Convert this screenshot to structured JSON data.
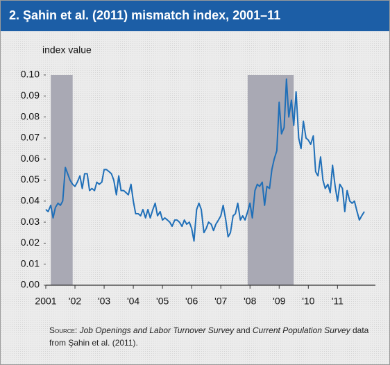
{
  "chart_data": {
    "type": "line",
    "title": "2. Şahin et al. (2011) mismatch index, 2001–11",
    "y_label": "index value",
    "color": "#1f6fb8",
    "shade_color": "#a9a9b4",
    "shaded_ranges": [
      [
        2001.17,
        2001.92
      ],
      [
        2007.92,
        2009.5
      ]
    ],
    "xlim": [
      2001,
      2012.3
    ],
    "ylim": [
      0,
      0.1
    ],
    "xticks": [
      {
        "value": 2001,
        "label": "2001"
      },
      {
        "value": 2002,
        "label": "'02"
      },
      {
        "value": 2003,
        "label": "'03"
      },
      {
        "value": 2004,
        "label": "'04"
      },
      {
        "value": 2005,
        "label": "'05"
      },
      {
        "value": 2006,
        "label": "'06"
      },
      {
        "value": 2007,
        "label": "'07"
      },
      {
        "value": 2008,
        "label": "'08"
      },
      {
        "value": 2009,
        "label": "'09"
      },
      {
        "value": 2010,
        "label": "'10"
      },
      {
        "value": 2011,
        "label": "'11"
      }
    ],
    "yticks": [
      {
        "value": 0,
        "label": "0.00"
      },
      {
        "value": 0.01,
        "label": "0.01"
      },
      {
        "value": 0.02,
        "label": "0.02"
      },
      {
        "value": 0.03,
        "label": "0.03"
      },
      {
        "value": 0.04,
        "label": "0.04"
      },
      {
        "value": 0.05,
        "label": "0.05"
      },
      {
        "value": 0.06,
        "label": "0.06"
      },
      {
        "value": 0.07,
        "label": "0.07"
      },
      {
        "value": 0.08,
        "label": "0.08"
      },
      {
        "value": 0.09,
        "label": "0.09"
      },
      {
        "value": 0.1,
        "label": "0.10"
      }
    ],
    "x": [
      2001.0,
      2001.08,
      2001.17,
      2001.25,
      2001.33,
      2001.42,
      2001.5,
      2001.58,
      2001.67,
      2001.75,
      2001.83,
      2001.92,
      2002.0,
      2002.08,
      2002.17,
      2002.25,
      2002.33,
      2002.42,
      2002.5,
      2002.58,
      2002.67,
      2002.75,
      2002.83,
      2002.92,
      2003.0,
      2003.08,
      2003.17,
      2003.25,
      2003.33,
      2003.42,
      2003.5,
      2003.58,
      2003.67,
      2003.75,
      2003.83,
      2003.92,
      2004.0,
      2004.08,
      2004.17,
      2004.25,
      2004.33,
      2004.42,
      2004.5,
      2004.58,
      2004.67,
      2004.75,
      2004.83,
      2004.92,
      2005.0,
      2005.08,
      2005.17,
      2005.25,
      2005.33,
      2005.42,
      2005.5,
      2005.58,
      2005.67,
      2005.75,
      2005.83,
      2005.92,
      2006.0,
      2006.08,
      2006.17,
      2006.25,
      2006.33,
      2006.42,
      2006.5,
      2006.58,
      2006.67,
      2006.75,
      2006.83,
      2006.92,
      2007.0,
      2007.08,
      2007.17,
      2007.25,
      2007.33,
      2007.42,
      2007.5,
      2007.58,
      2007.67,
      2007.75,
      2007.83,
      2007.92,
      2008.0,
      2008.08,
      2008.17,
      2008.25,
      2008.33,
      2008.42,
      2008.5,
      2008.58,
      2008.67,
      2008.75,
      2008.83,
      2008.92,
      2009.0,
      2009.08,
      2009.17,
      2009.25,
      2009.33,
      2009.42,
      2009.5,
      2009.58,
      2009.67,
      2009.75,
      2009.83,
      2009.92,
      2010.0,
      2010.08,
      2010.17,
      2010.25,
      2010.33,
      2010.42,
      2010.5,
      2010.58,
      2010.67,
      2010.75,
      2010.83,
      2010.92,
      2011.0,
      2011.08,
      2011.17,
      2011.25,
      2011.33,
      2011.42,
      2011.5,
      2011.58,
      2011.67,
      2011.75,
      2011.83,
      2011.92
    ],
    "values": [
      0.036,
      0.035,
      0.038,
      0.032,
      0.037,
      0.039,
      0.038,
      0.04,
      0.056,
      0.053,
      0.05,
      0.048,
      0.047,
      0.049,
      0.052,
      0.046,
      0.053,
      0.053,
      0.045,
      0.046,
      0.045,
      0.049,
      0.048,
      0.049,
      0.055,
      0.055,
      0.054,
      0.053,
      0.05,
      0.043,
      0.052,
      0.045,
      0.045,
      0.044,
      0.043,
      0.048,
      0.04,
      0.034,
      0.034,
      0.033,
      0.036,
      0.032,
      0.036,
      0.032,
      0.036,
      0.039,
      0.033,
      0.035,
      0.031,
      0.032,
      0.031,
      0.03,
      0.028,
      0.031,
      0.031,
      0.03,
      0.028,
      0.031,
      0.029,
      0.03,
      0.027,
      0.021,
      0.036,
      0.039,
      0.036,
      0.025,
      0.027,
      0.03,
      0.029,
      0.026,
      0.029,
      0.031,
      0.033,
      0.038,
      0.031,
      0.023,
      0.025,
      0.033,
      0.034,
      0.039,
      0.031,
      0.033,
      0.031,
      0.035,
      0.039,
      0.032,
      0.045,
      0.048,
      0.047,
      0.049,
      0.038,
      0.047,
      0.046,
      0.055,
      0.06,
      0.064,
      0.087,
      0.072,
      0.075,
      0.098,
      0.08,
      0.088,
      0.076,
      0.092,
      0.07,
      0.065,
      0.078,
      0.07,
      0.069,
      0.067,
      0.071,
      0.054,
      0.052,
      0.061,
      0.05,
      0.046,
      0.048,
      0.044,
      0.057,
      0.047,
      0.04,
      0.048,
      0.046,
      0.035,
      0.045,
      0.04,
      0.039,
      0.04,
      0.035,
      0.031,
      0.033,
      0.035
    ],
    "source": {
      "label": "Source:",
      "italic_1": "Job Openings and Labor Turnover Survey",
      "and": "and",
      "italic_2": "Current Population Survey",
      "rest": "data from Şahin et al. (2011)."
    }
  }
}
